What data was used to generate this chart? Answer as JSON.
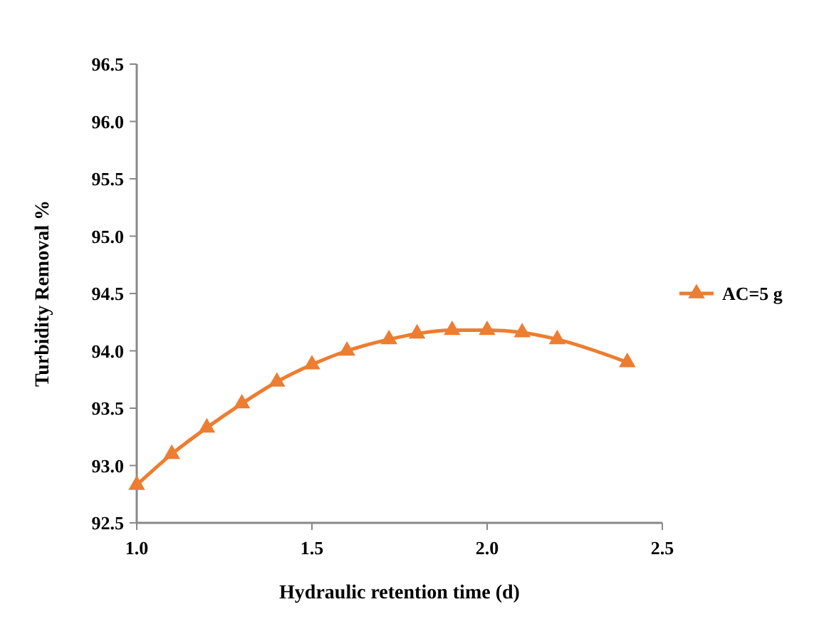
{
  "chart_data": {
    "type": "line",
    "xlabel": "Hydraulic retention time (d)",
    "ylabel": "Turbidity  Removal %",
    "x": [
      1.0,
      1.1,
      1.2,
      1.3,
      1.4,
      1.5,
      1.6,
      1.72,
      1.8,
      1.9,
      2.0,
      2.1,
      2.2,
      2.4
    ],
    "series": [
      {
        "name": "AC=5 g",
        "color": "#ed7d31",
        "values": [
          92.83,
          93.1,
          93.33,
          93.54,
          93.73,
          93.88,
          94.0,
          94.1,
          94.15,
          94.18,
          94.18,
          94.16,
          94.1,
          93.9
        ]
      }
    ],
    "xlim": [
      1.0,
      2.5
    ],
    "xticks": [
      {
        "value": 1,
        "label": "1.0"
      },
      1.5,
      {
        "value": 2,
        "label": "2.0"
      },
      2.5
    ],
    "ylim": [
      92.5,
      96.5
    ],
    "yticks": [
      92.5,
      {
        "value": 93,
        "label": "93.0"
      },
      93.5,
      {
        "value": 94,
        "label": "94.0"
      },
      94.5,
      {
        "value": 95,
        "label": "95.0"
      },
      95.5,
      {
        "value": 96,
        "label": "96.0"
      },
      96.5
    ],
    "marker": "triangle",
    "line_style": "solid",
    "grid": false,
    "legend": "right"
  }
}
